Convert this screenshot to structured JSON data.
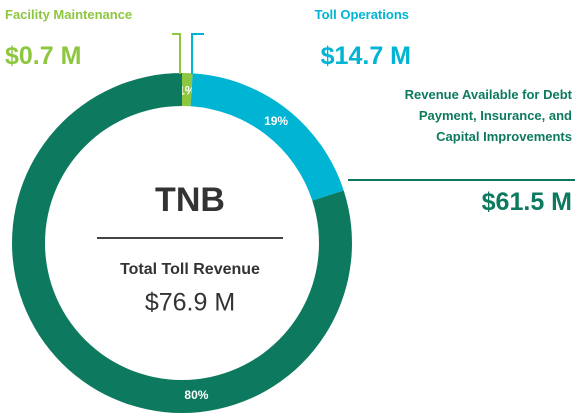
{
  "chart_data": {
    "type": "pie",
    "donut": true,
    "categories": [
      "Facility Maintenance",
      "Toll Operations",
      "Revenue Available for Debt Payment, Insurance, and Capital Improvements"
    ],
    "values": [
      1,
      19,
      80
    ],
    "value_labels": [
      "1%",
      "19%",
      "80%"
    ],
    "amount_labels": [
      "$0.7 M",
      "$14.7 M",
      "$61.5 M"
    ],
    "colors": [
      "#8dc63f",
      "#00b4d4",
      "#0d7a5f"
    ],
    "center": {
      "title": "TNB",
      "subtitle": "Total Toll Revenue",
      "total": "$76.9 M"
    }
  }
}
